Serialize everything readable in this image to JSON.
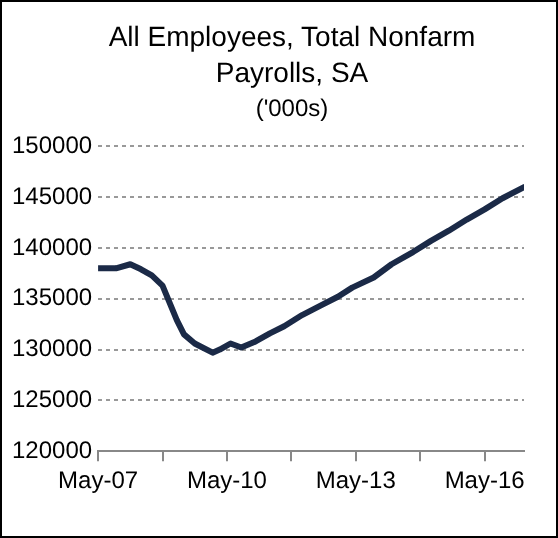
{
  "chart_data": {
    "type": "line",
    "title": "All Employees, Total Nonfarm Payrolls, SA",
    "subtitle": "('000s)",
    "x": [
      "2007-05",
      "2007-10",
      "2008-02",
      "2008-05",
      "2008-08",
      "2008-11",
      "2009-01",
      "2009-03",
      "2009-05",
      "2009-08",
      "2010-01",
      "2010-03",
      "2010-06",
      "2010-09",
      "2011-01",
      "2011-05",
      "2011-09",
      "2012-02",
      "2012-07",
      "2012-12",
      "2013-04",
      "2013-10",
      "2014-03",
      "2014-09",
      "2015-02",
      "2015-07",
      "2015-12",
      "2016-05",
      "2016-10",
      "2017-04"
    ],
    "series": [
      {
        "color": "#1b2a47",
        "values": [
          138000,
          138000,
          138400,
          137900,
          137300,
          136300,
          134600,
          132900,
          131500,
          130600,
          129700,
          130000,
          130600,
          130200,
          130800,
          131600,
          132300,
          133400,
          134300,
          135200,
          136100,
          137100,
          138400,
          139600,
          140700,
          141700,
          142800,
          143800,
          144900,
          146000
        ]
      }
    ],
    "xlim": [
      "2007-05",
      "2017-04"
    ],
    "xticks": [
      {
        "value": "2007-05",
        "label": "May-07"
      },
      {
        "value": "2008-11",
        "label": null
      },
      {
        "value": "2010-05",
        "label": "May-10"
      },
      {
        "value": "2011-11",
        "label": null
      },
      {
        "value": "2013-05",
        "label": "May-13"
      },
      {
        "value": "2014-11",
        "label": null
      },
      {
        "value": "2016-05",
        "label": "May-16"
      }
    ],
    "ylim": [
      120000,
      150000
    ],
    "yticks": [
      120000,
      125000,
      130000,
      135000,
      140000,
      145000,
      150000
    ],
    "grid": "y",
    "legend": false,
    "marker": "none",
    "line_style": "solid"
  }
}
